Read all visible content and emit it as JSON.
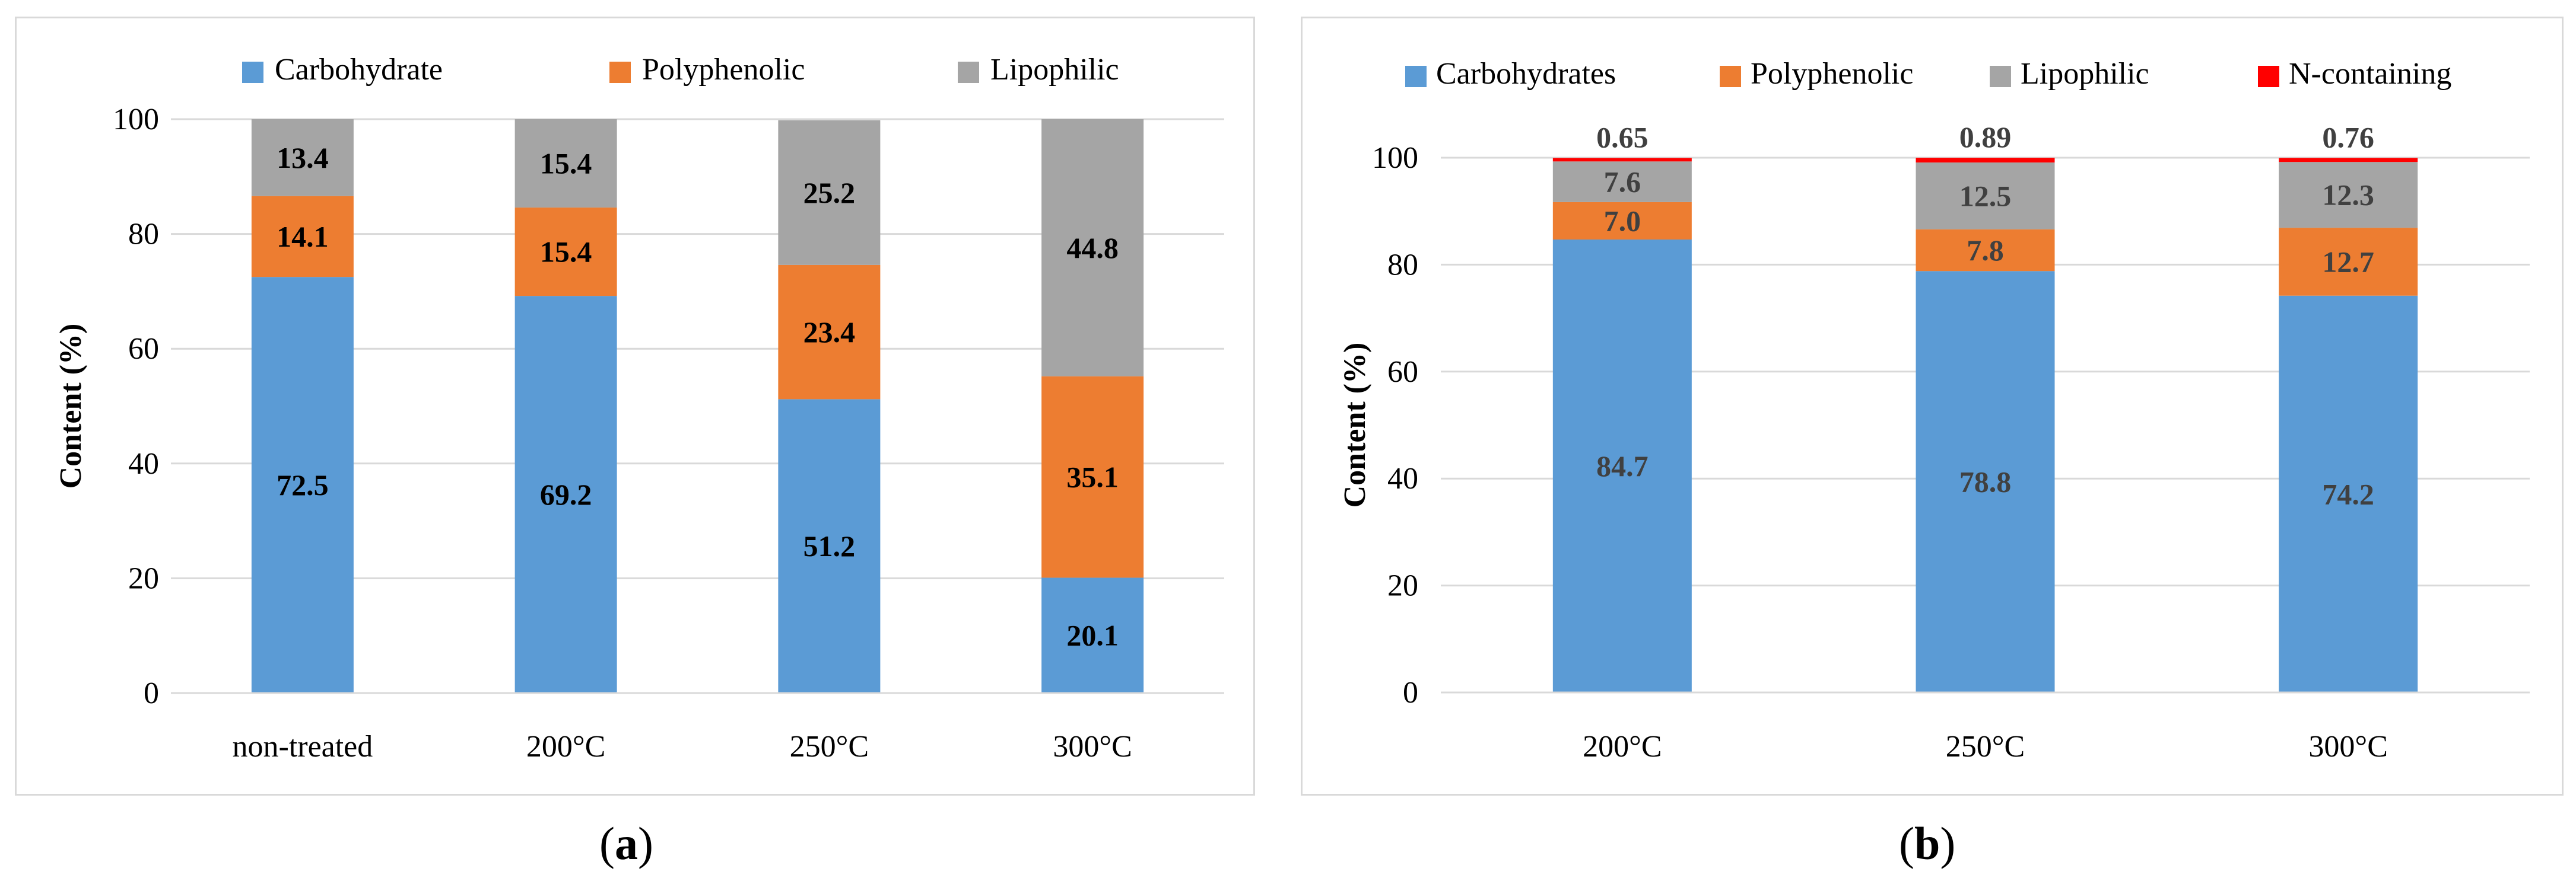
{
  "chart_data": [
    {
      "type": "bar",
      "stacked": true,
      "panel": "a",
      "categories": [
        "non-treated",
        "200°C",
        "250°C",
        "300°C"
      ],
      "series": [
        {
          "name": "Carbohydrate",
          "color": "#5b9bd5",
          "values": [
            72.5,
            69.2,
            51.2,
            20.1
          ]
        },
        {
          "name": "Polyphenolic",
          "color": "#ed7d31",
          "values": [
            14.1,
            15.4,
            23.4,
            35.1
          ]
        },
        {
          "name": "Lipophilic",
          "color": "#a5a5a5",
          "values": [
            13.4,
            15.4,
            25.2,
            44.8
          ]
        }
      ],
      "data_labels": [
        [
          "72.5",
          "69.2",
          "51.2",
          "20.1"
        ],
        [
          "14.1",
          "15.4",
          "23.4",
          "35.1"
        ],
        [
          "13.4",
          "15.4",
          "25.2",
          "44.8"
        ]
      ],
      "label_color": "#000000",
      "ylabel": "Content (%)",
      "xlabel": "",
      "ylim": [
        0,
        100
      ],
      "yticks": [
        0,
        20,
        40,
        60,
        80,
        100
      ],
      "ytick_labels": [
        "0",
        "20",
        "40",
        "60",
        "80",
        "100"
      ],
      "grid": true,
      "legend": "top"
    },
    {
      "type": "bar",
      "stacked": true,
      "panel": "b",
      "categories": [
        "200°C",
        "250°C",
        "300°C"
      ],
      "series": [
        {
          "name": "Carbohydrates",
          "color": "#5b9bd5",
          "values": [
            84.7,
            78.8,
            74.2
          ]
        },
        {
          "name": "Polyphenolic",
          "color": "#ed7d31",
          "values": [
            7.0,
            7.8,
            12.7
          ]
        },
        {
          "name": "Lipophilic",
          "color": "#a5a5a5",
          "values": [
            7.6,
            12.5,
            12.3
          ]
        },
        {
          "name": "N-containing",
          "color": "#ff0000",
          "values": [
            0.65,
            0.89,
            0.76
          ]
        }
      ],
      "data_labels": [
        [
          "84.7",
          "78.8",
          "74.2"
        ],
        [
          "7.0",
          "7.8",
          "12.7"
        ],
        [
          "7.6",
          "12.5",
          "12.3"
        ],
        [
          "0.65",
          "0.89",
          "0.76"
        ]
      ],
      "label_color": "#404040",
      "ylabel": "Content (%)",
      "xlabel": "",
      "ylim": [
        0,
        100
      ],
      "yticks": [
        0,
        20,
        40,
        60,
        80,
        100
      ],
      "ytick_labels": [
        "0",
        "20",
        "40",
        "60",
        "80",
        "100"
      ],
      "grid": true,
      "legend": "top"
    }
  ],
  "captions": {
    "a": "a",
    "b": "b"
  }
}
